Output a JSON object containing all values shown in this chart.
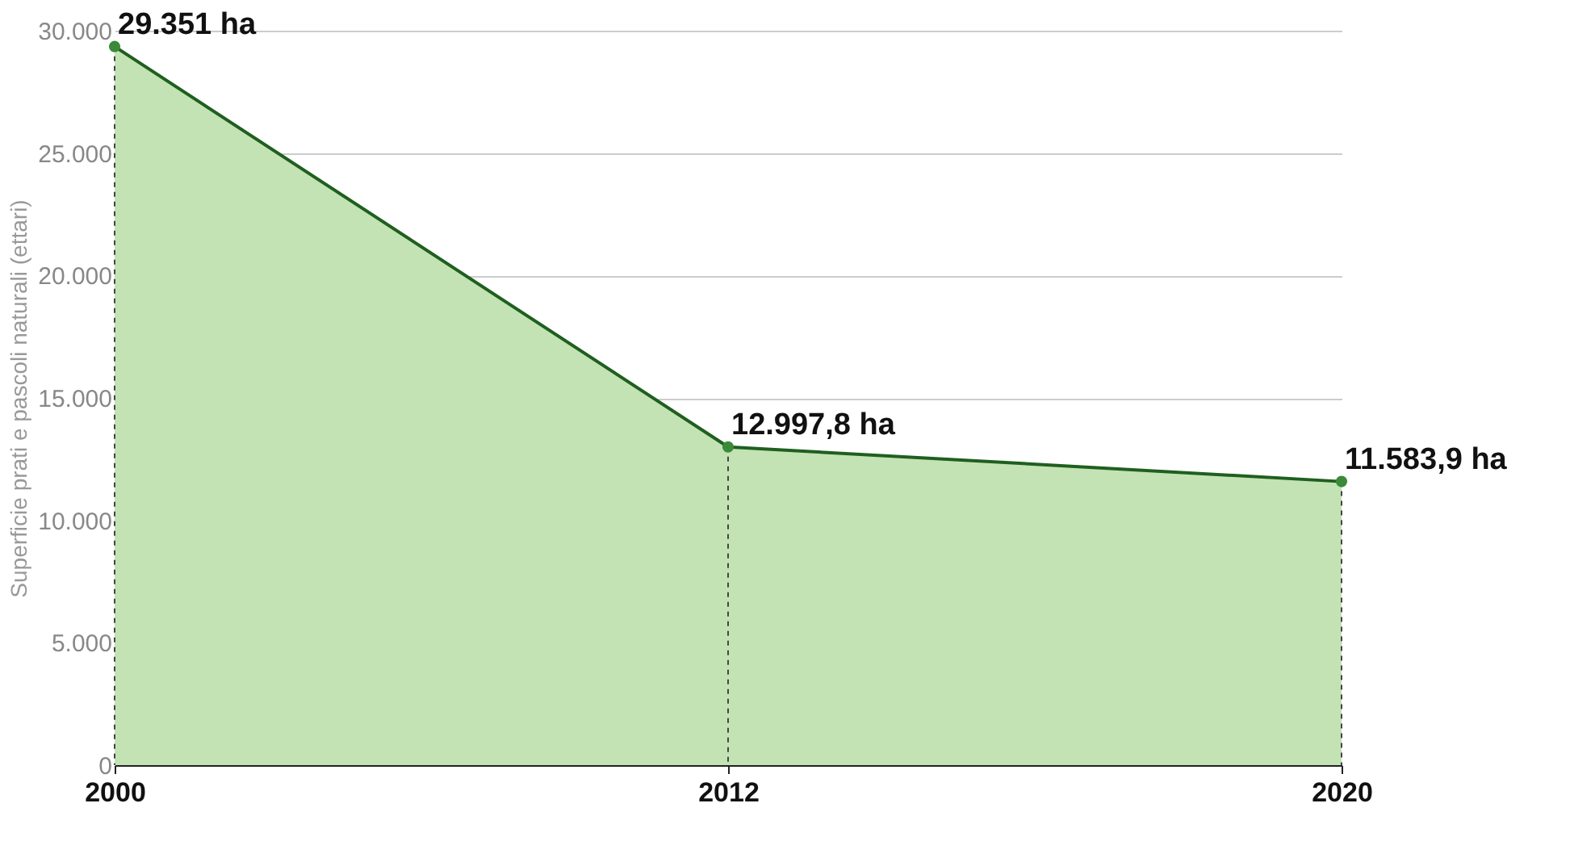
{
  "chart_data": {
    "type": "area",
    "ylabel": "Superficie prati e pascoli naturali (ettari)",
    "categories": [
      "2000",
      "2012",
      "2020"
    ],
    "series": [
      {
        "color": "#c3e3b4",
        "values": [
          29351,
          12997.8,
          11583.9
        ],
        "value_labels": [
          "29.351 ha",
          "12.997,8 ha",
          "11.583,9 ha"
        ]
      }
    ],
    "ylim": [
      0,
      30000
    ],
    "yticks": [
      {
        "value": 0,
        "label": "0"
      },
      {
        "value": 5000,
        "label": "5.000"
      },
      {
        "value": 10000,
        "label": "10.000"
      },
      {
        "value": 15000,
        "label": "15.000"
      },
      {
        "value": 20000,
        "label": "20.000"
      },
      {
        "value": 25000,
        "label": "25.000"
      },
      {
        "value": 30000,
        "label": "30.000"
      }
    ],
    "grid": "y",
    "marker": "circle"
  }
}
